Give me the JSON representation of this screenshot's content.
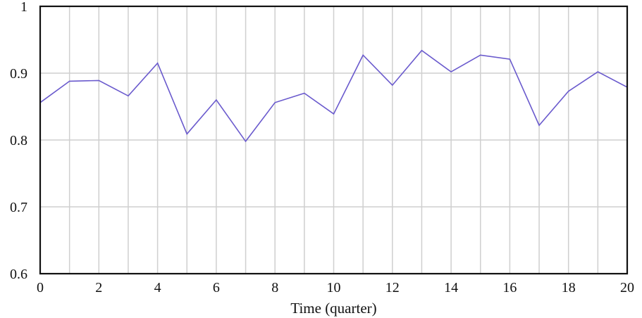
{
  "chart_data": {
    "type": "line",
    "title": "",
    "xlabel": "Time (quarter)",
    "ylabel": "",
    "xlim": [
      0,
      20
    ],
    "ylim": [
      0.6,
      1.0
    ],
    "grid": true,
    "x_gridlines": [
      0,
      1,
      2,
      3,
      4,
      5,
      6,
      7,
      8,
      9,
      10,
      11,
      12,
      13,
      14,
      15,
      16,
      17,
      18,
      19,
      20
    ],
    "y_gridlines": [
      0.7,
      0.8,
      0.9,
      1.0
    ],
    "x_ticks": [
      0,
      2,
      4,
      6,
      8,
      10,
      12,
      14,
      16,
      18,
      20
    ],
    "x_tick_labels": [
      "0",
      "2",
      "4",
      "6",
      "8",
      "10",
      "12",
      "14",
      "16",
      "18",
      "20"
    ],
    "y_ticks": [
      0.6,
      0.7,
      0.8,
      0.9,
      1.0
    ],
    "y_tick_labels": [
      "0.6",
      "0.7",
      "0.8",
      "0.9",
      "1"
    ],
    "colors": {
      "line": "#6a5acd",
      "grid": "#cfcfcf",
      "axes": "#111111"
    },
    "series": [
      {
        "x": [
          0,
          1,
          2,
          3,
          4,
          5,
          6,
          7,
          8,
          9,
          10,
          11,
          12,
          13,
          14,
          15,
          16,
          17,
          18,
          19,
          20
        ],
        "values": [
          0.856,
          0.888,
          0.889,
          0.866,
          0.915,
          0.809,
          0.86,
          0.798,
          0.856,
          0.87,
          0.839,
          0.927,
          0.882,
          0.934,
          0.902,
          0.927,
          0.921,
          0.822,
          0.873,
          0.902,
          0.879
        ]
      }
    ]
  }
}
